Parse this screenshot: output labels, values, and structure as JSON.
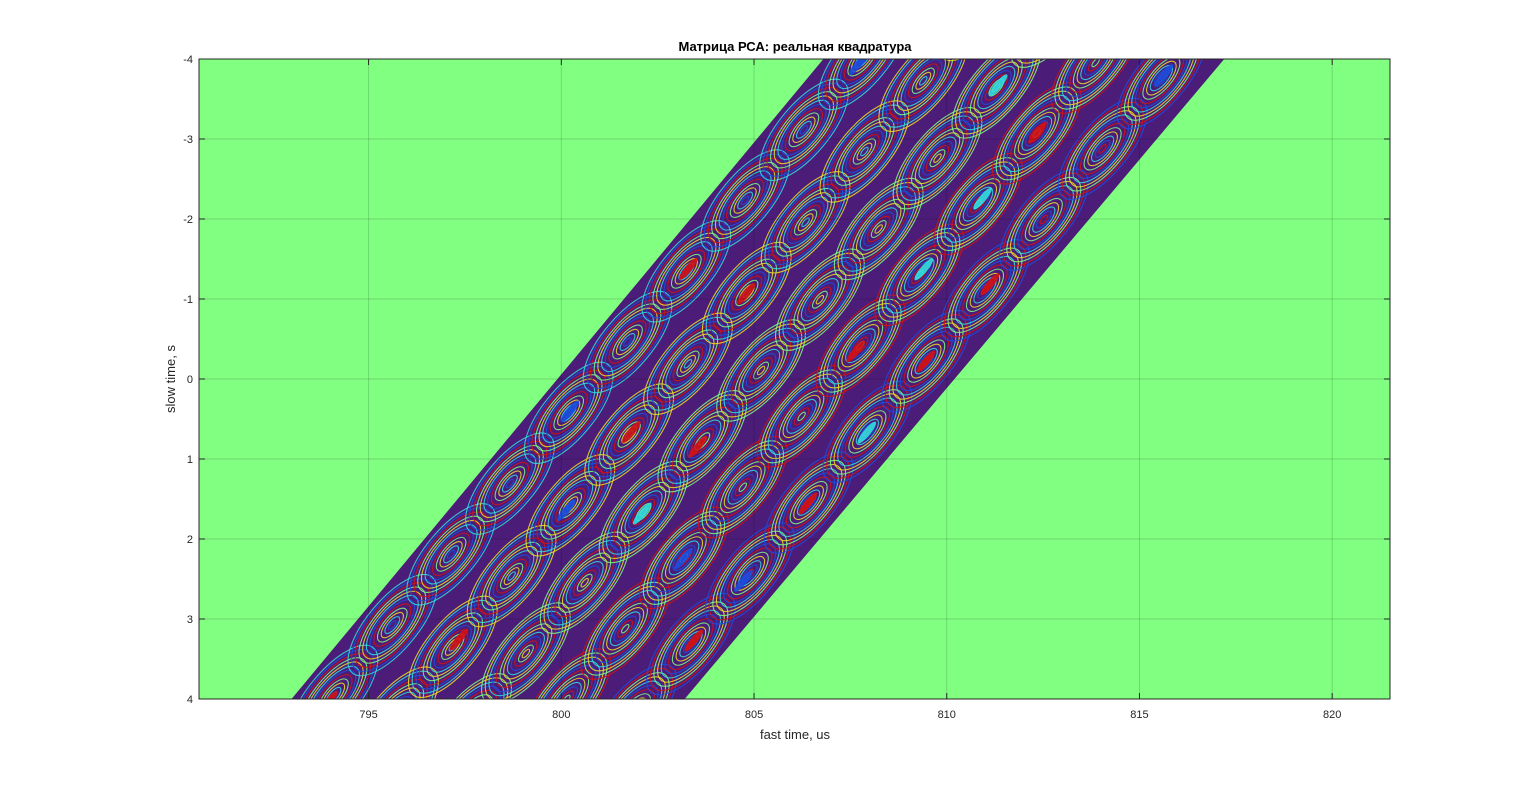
{
  "chart_data": {
    "type": "heatmap",
    "title": "Матрица РСА: реальная квадратура",
    "xlabel": "fast time, us",
    "ylabel": "slow time, s",
    "xlim": [
      790.6,
      821.5
    ],
    "ylim": [
      -4,
      4
    ],
    "y_direction": "reversed",
    "x_ticks": [
      795,
      800,
      805,
      810,
      815,
      820
    ],
    "x_tick_labels": [
      "795",
      "800",
      "805",
      "810",
      "815",
      "820"
    ],
    "y_ticks": [
      -4,
      -3,
      -2,
      -1,
      0,
      1,
      2,
      3,
      4
    ],
    "y_tick_labels": [
      "-4",
      "-3",
      "-2",
      "-1",
      "0",
      "1",
      "2",
      "3",
      "4"
    ],
    "grid": true,
    "colormap": "jet",
    "background_color": "#80ff80",
    "band": {
      "description": "diagonal band of dense interference fringes",
      "left_edge": [
        {
          "x": 793.0,
          "y": 4
        },
        {
          "x": 806.8,
          "y": -4
        }
      ],
      "right_edge": [
        {
          "x": 803.2,
          "y": 4
        },
        {
          "x": 817.2,
          "y": -4
        }
      ]
    },
    "colors": {
      "band_base": "#4b1c78",
      "fringe_1": "#d51212",
      "fringe_2": "#1a4fe0",
      "fringe_3": "#2fe0e0",
      "fringe_4": "#f0e020",
      "fringe_5": "#80ff80",
      "grid": "#000000",
      "axes": "#262626"
    }
  }
}
